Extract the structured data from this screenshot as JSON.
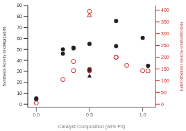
{
  "chart_data": {
    "type": "scatter",
    "xlabel": "Catalyst Composition (wt% Pd)",
    "ylabel": "Synthesis Activity (mol/kg(cat)/h)",
    "y2label": "Hydrogenation Activity (mol/kg(cat)/h)",
    "xlim": [
      -0.08,
      1.12
    ],
    "ylim": [
      -3,
      90
    ],
    "y2lim": [
      -14,
      420
    ],
    "xticks": [
      {
        "value": 0,
        "label": "0.0"
      },
      0.5,
      {
        "value": 1,
        "label": "1.0"
      }
    ],
    "yticks": [
      0,
      10,
      20,
      30,
      40,
      50,
      60,
      70,
      80,
      90
    ],
    "y2ticks": [
      0,
      50,
      100,
      150,
      200,
      250,
      300,
      350,
      400
    ],
    "series": [
      {
        "color": "#222222",
        "marker": "circle",
        "x": [
          0.0,
          0.0,
          0.25,
          0.25,
          0.35,
          0.35,
          0.5,
          0.5,
          0.5,
          0.75,
          0.75,
          1.0,
          1.05
        ],
        "values": [
          5.2,
          4.5,
          46.0,
          50.0,
          51.0,
          51.5,
          55.0,
          30.5,
          31.5,
          76.0,
          53.0,
          60.5,
          35.0
        ]
      },
      {
        "color": "#222222",
        "marker": "triangle",
        "x": [
          0.5
        ],
        "values": [
          25.5
        ]
      },
      {
        "color": "#cc2222",
        "marker": "open_circle",
        "axis": "y2",
        "x": [
          0.0,
          0.25,
          0.35,
          0.35,
          0.5,
          0.5,
          0.5,
          0.75,
          0.75,
          0.85,
          1.0,
          1.05
        ],
        "values": [
          5.0,
          105.0,
          182.0,
          143.0,
          395.0,
          143.0,
          148.0,
          200.0,
          200.0,
          165.0,
          143.0,
          142.0
        ]
      },
      {
        "color": "#cc2222",
        "marker": "open_triangle",
        "axis": "y2",
        "x": [
          0.5
        ],
        "values": [
          378.0
        ]
      }
    ]
  }
}
